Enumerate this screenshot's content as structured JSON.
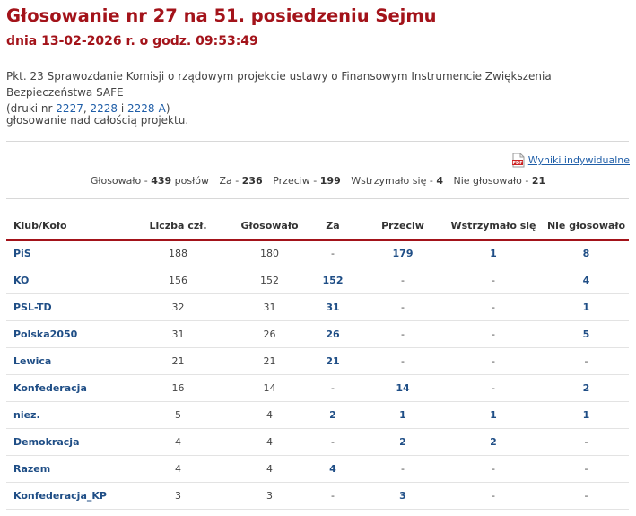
{
  "header": {
    "title": "Głosowanie nr 27 na 51. posiedzeniu Sejmu",
    "subtitle": "dnia 13-02-2026 r. o godz. 09:53:49"
  },
  "description": {
    "text": "Pkt. 23 Sprawozdanie Komisji o rządowym projekcie ustawy o Finansowym Instrumencie Zwiększenia Bezpieczeństwa SAFE",
    "prints_prefix": "(druki nr ",
    "print_1": "2227",
    "sep": ", ",
    "print_2": "2228",
    "and": " i ",
    "print_3": "2228-A",
    "suffix": ")",
    "note": "głosowanie nad całością projektu."
  },
  "individual_results": {
    "label": "Wyniki indywidualne",
    "icon": "pdf-icon"
  },
  "summary": {
    "voted_label": "Głosowało - ",
    "voted": "439",
    "voted_unit": " posłów",
    "for_label": "Za - ",
    "for": "236",
    "against_label": "Przeciw - ",
    "against": "199",
    "abstain_label": "Wstrzymało się - ",
    "abstain": "4",
    "not_voted_label": "Nie głosowało - ",
    "not_voted": "21"
  },
  "table": {
    "headers": [
      "Klub/Koło",
      "Liczba czł.",
      "Głosowało",
      "Za",
      "Przeciw",
      "Wstrzymało się",
      "Nie głosowało"
    ],
    "rows": [
      {
        "club": "PiS",
        "members": "188",
        "voted": "180",
        "for": "-",
        "against": "179",
        "abstain": "1",
        "not_voted": "8"
      },
      {
        "club": "KO",
        "members": "156",
        "voted": "152",
        "for": "152",
        "against": "-",
        "abstain": "-",
        "not_voted": "4"
      },
      {
        "club": "PSL-TD",
        "members": "32",
        "voted": "31",
        "for": "31",
        "against": "-",
        "abstain": "-",
        "not_voted": "1"
      },
      {
        "club": "Polska2050",
        "members": "31",
        "voted": "26",
        "for": "26",
        "against": "-",
        "abstain": "-",
        "not_voted": "5"
      },
      {
        "club": "Lewica",
        "members": "21",
        "voted": "21",
        "for": "21",
        "against": "-",
        "abstain": "-",
        "not_voted": "-"
      },
      {
        "club": "Konfederacja",
        "members": "16",
        "voted": "14",
        "for": "-",
        "against": "14",
        "abstain": "-",
        "not_voted": "2"
      },
      {
        "club": "niez.",
        "members": "5",
        "voted": "4",
        "for": "2",
        "against": "1",
        "abstain": "1",
        "not_voted": "1"
      },
      {
        "club": "Demokracja",
        "members": "4",
        "voted": "4",
        "for": "-",
        "against": "2",
        "abstain": "2",
        "not_voted": "-"
      },
      {
        "club": "Razem",
        "members": "4",
        "voted": "4",
        "for": "4",
        "against": "-",
        "abstain": "-",
        "not_voted": "-"
      },
      {
        "club": "Konfederacja_KP",
        "members": "3",
        "voted": "3",
        "for": "-",
        "against": "3",
        "abstain": "-",
        "not_voted": "-"
      }
    ]
  },
  "colors": {
    "accent": "#a3131a",
    "link": "#1f4e86"
  }
}
